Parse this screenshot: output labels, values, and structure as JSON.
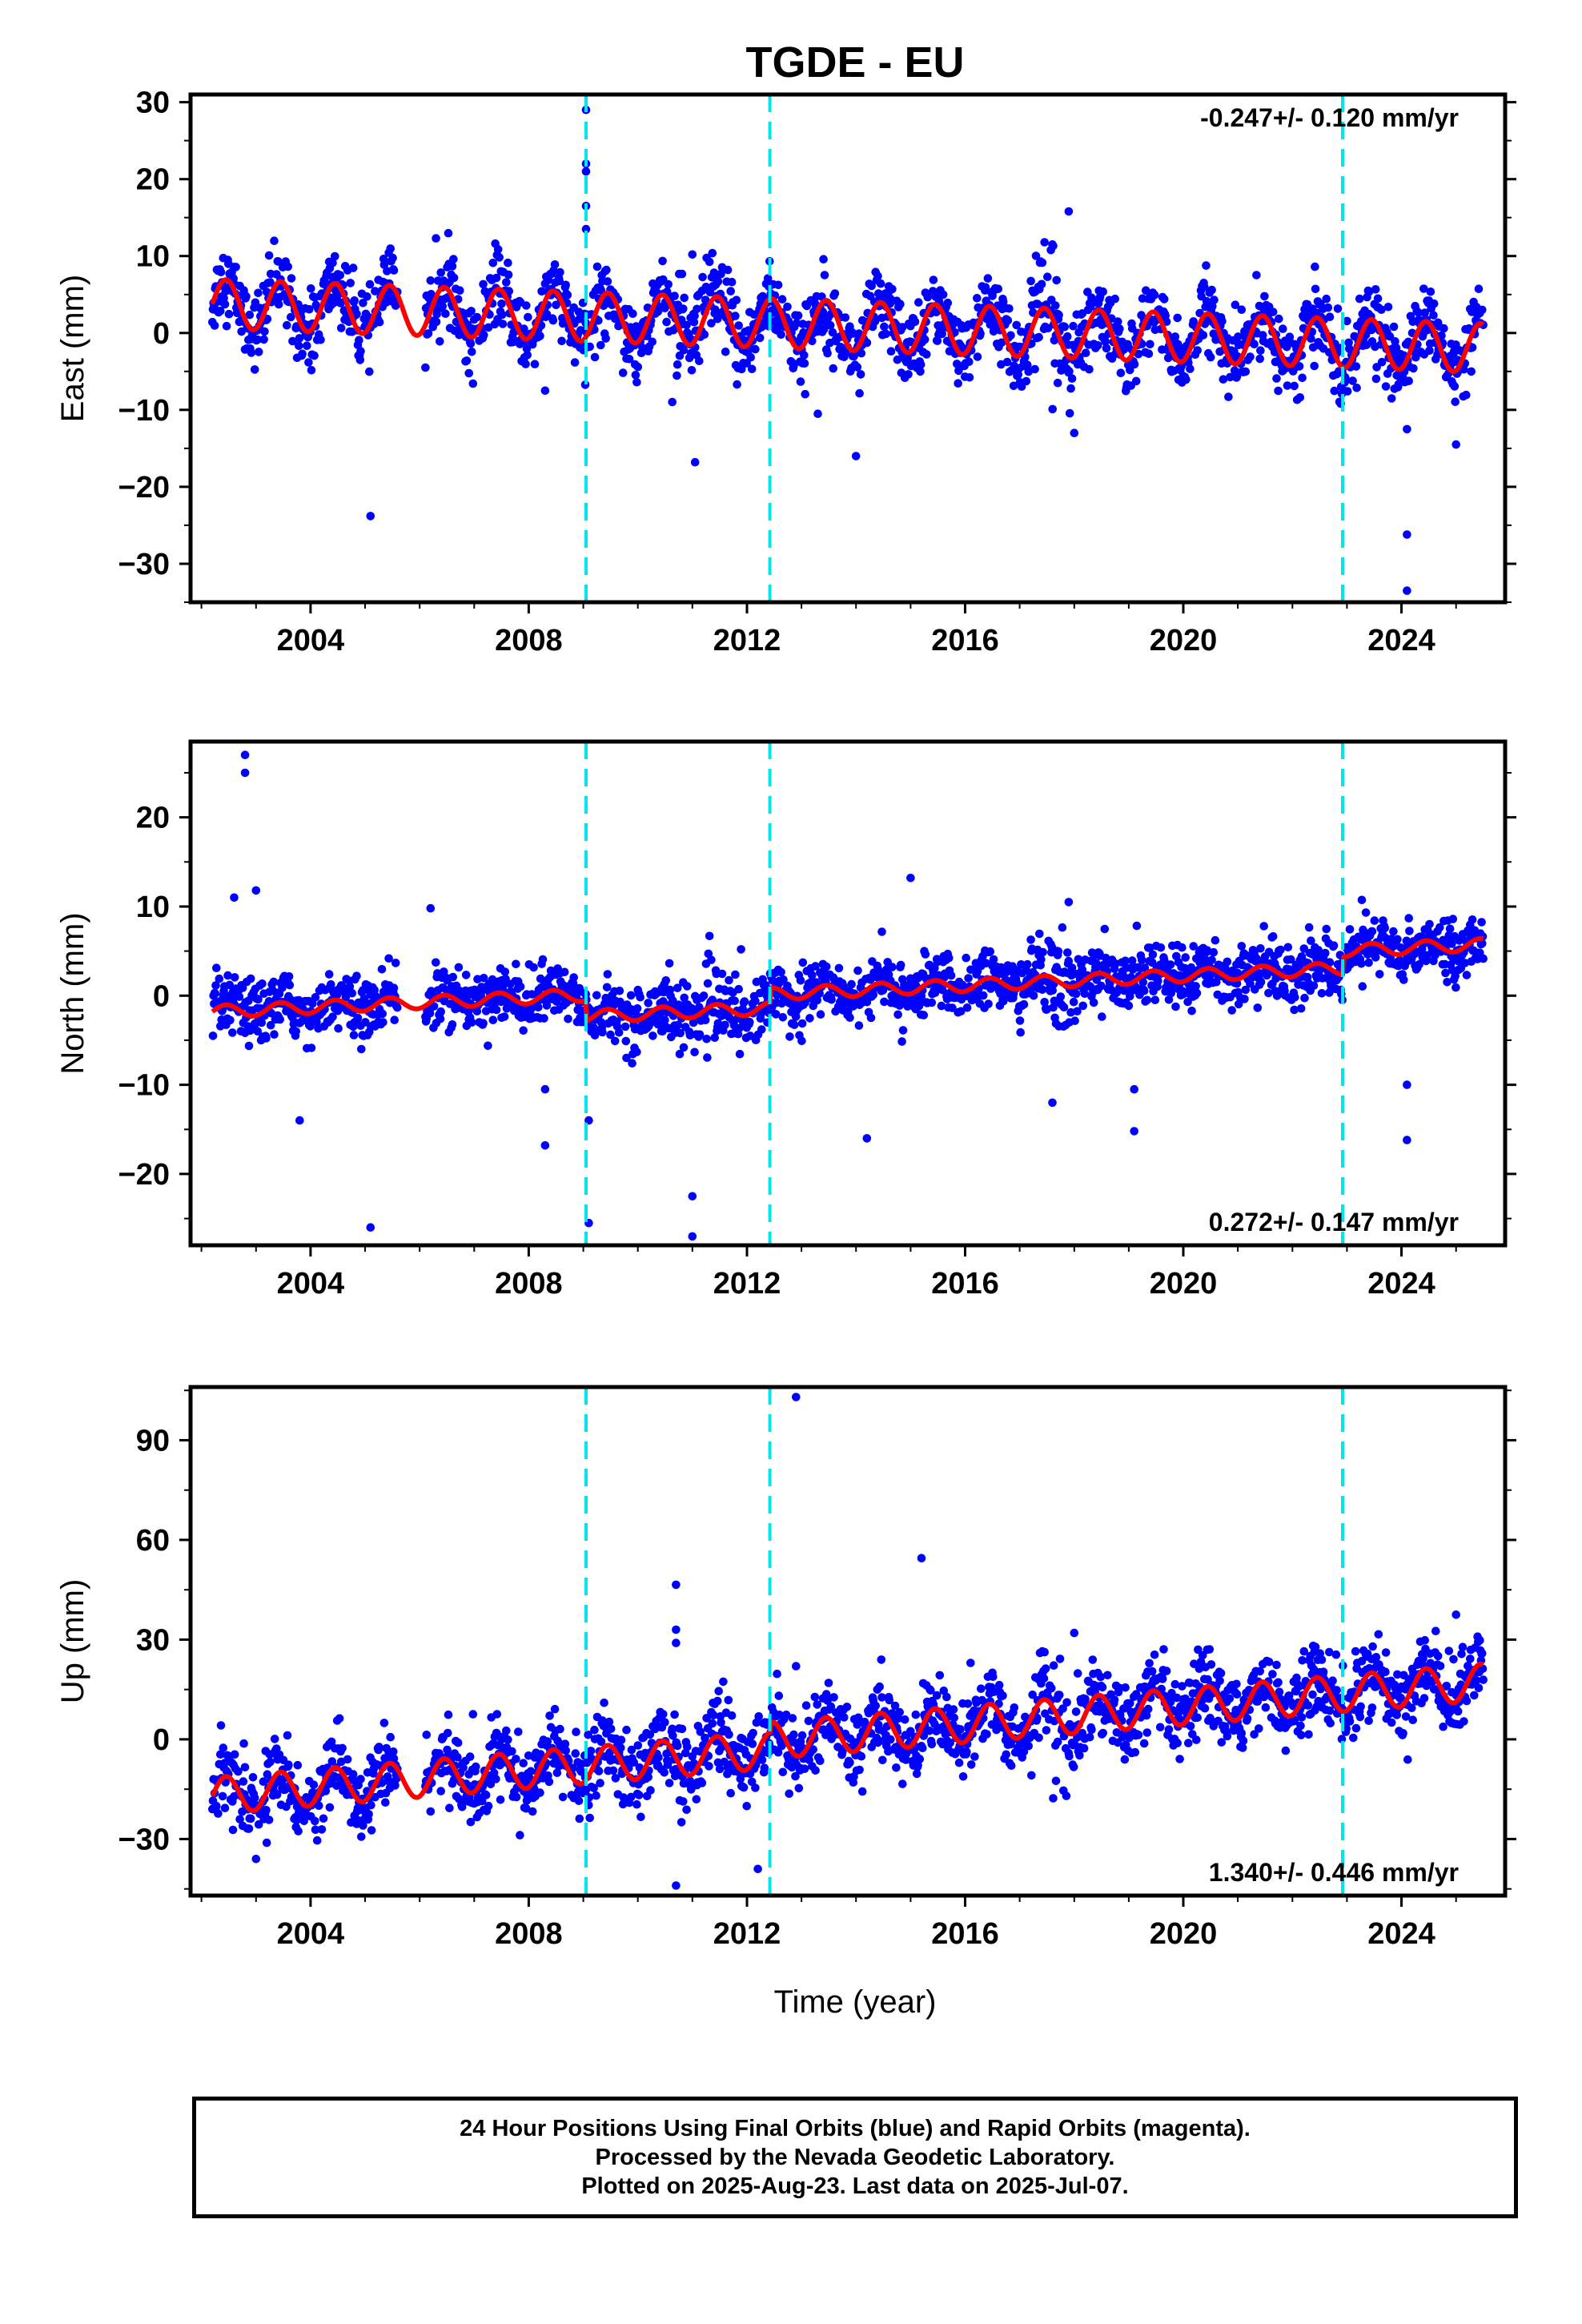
{
  "title": "TGDE - EU",
  "xlabel": "Time (year)",
  "footer": {
    "line1": "24 Hour Positions Using Final Orbits (blue) and Rapid Orbits (magenta).",
    "line2": "Processed by the Nevada Geodetic Laboratory.",
    "line3": "Plotted on 2025-Aug-23. Last data on 2025-Jul-07."
  },
  "colors": {
    "data": "#0000ff",
    "model": "#ff0000",
    "breaks": "#00e5ee",
    "axes": "#000000"
  },
  "chart_data": [
    {
      "type": "scatter",
      "ylabel": "East (mm)",
      "xlim": [
        2001.8,
        2025.9
      ],
      "ylim": [
        -35,
        31
      ],
      "yticks": [
        -30,
        -20,
        -10,
        0,
        10,
        20,
        30
      ],
      "xticks": [
        2004,
        2008,
        2012,
        2016,
        2020,
        2024
      ],
      "rate_text": "-0.247+/- 0.120 mm/yr",
      "rate_position": "top-right",
      "step_lines_x": [
        2009.05,
        2012.42,
        2022.92
      ],
      "data_span": [
        2002.2,
        2025.5
      ],
      "data_gap": [
        2005.6,
        2006.1
      ],
      "series_model": {
        "start_value": 3.8,
        "rate_mm_yr": -0.247,
        "seasonal_amplitude": 3.2,
        "steps": []
      },
      "scatter_sigma": 2.3,
      "outliers": [
        {
          "x": 2009.05,
          "y": 29
        },
        {
          "x": 2009.05,
          "y": 22
        },
        {
          "x": 2009.05,
          "y": 21
        },
        {
          "x": 2009.05,
          "y": 16.5
        },
        {
          "x": 2009.05,
          "y": 13.5
        },
        {
          "x": 2006.3,
          "y": 12.3
        },
        {
          "x": 2011.0,
          "y": 10.2
        },
        {
          "x": 2017.9,
          "y": 15.8
        },
        {
          "x": 2017.6,
          "y": 11.5
        },
        {
          "x": 2005.1,
          "y": -23.8
        },
        {
          "x": 2011.05,
          "y": -16.8
        },
        {
          "x": 2014.0,
          "y": -16.0
        },
        {
          "x": 2008.3,
          "y": -7.5
        },
        {
          "x": 2018.0,
          "y": -13.0
        },
        {
          "x": 2025.0,
          "y": -14.5
        },
        {
          "x": 2024.1,
          "y": -12.5
        },
        {
          "x": 2024.1,
          "y": -26.2
        },
        {
          "x": 2024.1,
          "y": -33.5
        },
        {
          "x": 2013.3,
          "y": -10.5
        }
      ]
    },
    {
      "type": "scatter",
      "ylabel": "North (mm)",
      "xlim": [
        2001.8,
        2025.9
      ],
      "ylim": [
        -28,
        28.5
      ],
      "yticks": [
        -20,
        -10,
        0,
        10,
        20
      ],
      "xticks": [
        2004,
        2008,
        2012,
        2016,
        2020,
        2024
      ],
      "rate_text": "0.272+/- 0.147 mm/yr",
      "rate_position": "bottom-right",
      "step_lines_x": [
        2009.05,
        2012.42,
        2022.92
      ],
      "data_span": [
        2002.2,
        2025.5
      ],
      "data_gap": [
        2005.6,
        2006.1
      ],
      "series_model": {
        "start_value": -1.8,
        "rate_mm_yr": 0.272,
        "seasonal_amplitude": 0.7,
        "steps": [
          {
            "x": 2009.05,
            "dy": -2.4
          },
          {
            "x": 2012.42,
            "dy": 1.6
          },
          {
            "x": 2022.92,
            "dy": 2.0
          }
        ]
      },
      "scatter_sigma": 1.6,
      "outliers": [
        {
          "x": 2002.8,
          "y": 27.0
        },
        {
          "x": 2002.8,
          "y": 25.0
        },
        {
          "x": 2003.0,
          "y": 11.8
        },
        {
          "x": 2002.6,
          "y": 11.0
        },
        {
          "x": 2006.2,
          "y": 9.8
        },
        {
          "x": 2015.0,
          "y": 13.2
        },
        {
          "x": 2014.2,
          "y": -16.0
        },
        {
          "x": 2008.3,
          "y": -10.5
        },
        {
          "x": 2008.3,
          "y": -16.8
        },
        {
          "x": 2003.8,
          "y": -14.0
        },
        {
          "x": 2005.1,
          "y": -26.0
        },
        {
          "x": 2009.1,
          "y": -25.5
        },
        {
          "x": 2009.1,
          "y": -14.0
        },
        {
          "x": 2011.0,
          "y": -22.5
        },
        {
          "x": 2011.0,
          "y": -27.0
        },
        {
          "x": 2019.1,
          "y": -15.2
        },
        {
          "x": 2019.1,
          "y": -10.5
        },
        {
          "x": 2024.1,
          "y": -16.2
        },
        {
          "x": 2024.1,
          "y": -10.0
        },
        {
          "x": 2017.6,
          "y": -12.0
        },
        {
          "x": 2017.9,
          "y": 10.5
        }
      ]
    },
    {
      "type": "scatter",
      "ylabel": "Up (mm)",
      "xlim": [
        2001.8,
        2025.9
      ],
      "ylim": [
        -47,
        106
      ],
      "yticks": [
        -30,
        0,
        30,
        60,
        90
      ],
      "xticks": [
        2004,
        2008,
        2012,
        2016,
        2020,
        2024
      ],
      "rate_text": "1.340+/- 0.446 mm/yr",
      "rate_position": "bottom-right",
      "step_lines_x": [
        2009.05,
        2012.42,
        2022.92
      ],
      "data_span": [
        2002.2,
        2025.5
      ],
      "data_gap": [
        2005.6,
        2006.1
      ],
      "series_model": {
        "start_value": -17.0,
        "rate_mm_yr": 1.34,
        "seasonal_amplitude": 5.5,
        "steps": [
          {
            "x": 2012.42,
            "dy": 3.0
          },
          {
            "x": 2022.92,
            "dy": 0.0
          }
        ]
      },
      "scatter_sigma": 5.5,
      "outliers": [
        {
          "x": 2012.9,
          "y": 103
        },
        {
          "x": 2015.2,
          "y": 54.5
        },
        {
          "x": 2010.7,
          "y": 46.5
        },
        {
          "x": 2010.7,
          "y": 33.0
        },
        {
          "x": 2010.7,
          "y": 29.0
        },
        {
          "x": 2018.0,
          "y": 32.0
        },
        {
          "x": 2025.0,
          "y": 37.5
        },
        {
          "x": 2010.7,
          "y": -44.0
        },
        {
          "x": 2012.2,
          "y": -39.0
        },
        {
          "x": 2003.0,
          "y": -36.0
        },
        {
          "x": 2012.9,
          "y": 22.0
        },
        {
          "x": 2016.1,
          "y": 23.0
        }
      ]
    }
  ]
}
